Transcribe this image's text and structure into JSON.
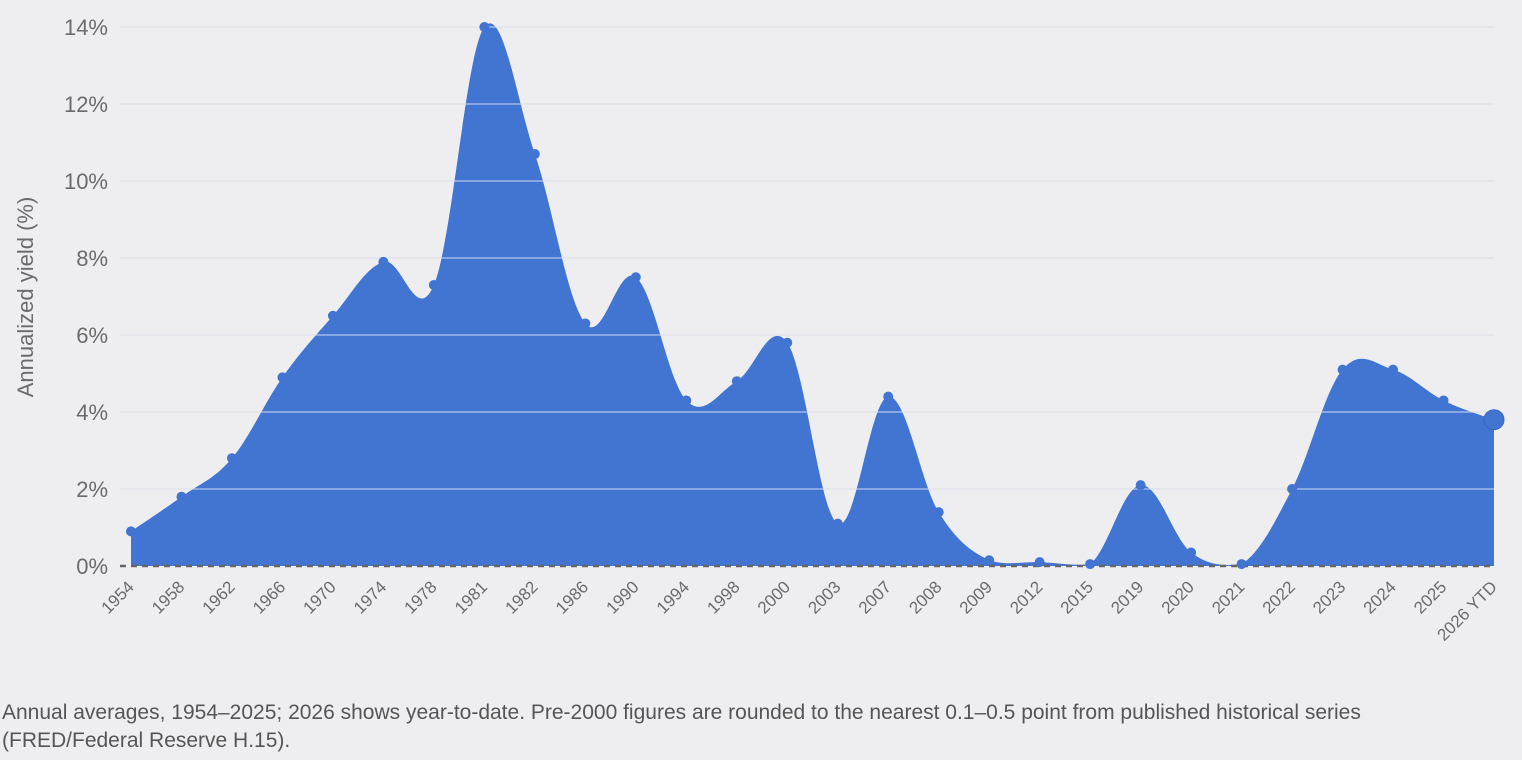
{
  "chart_data": {
    "type": "area",
    "ylabel": "Annualized yield (%)",
    "xlabel": "",
    "ylim": [
      0,
      14
    ],
    "yticks": [
      0,
      2,
      4,
      6,
      8,
      10,
      12,
      14
    ],
    "ytick_suffix": "%",
    "grid": true,
    "area_color": "#4274d2",
    "categories": [
      "1954",
      "1958",
      "1962",
      "1966",
      "1970",
      "1974",
      "1978",
      "1981",
      "1982",
      "1986",
      "1990",
      "1994",
      "1998",
      "2000",
      "2003",
      "2007",
      "2008",
      "2009",
      "2012",
      "2015",
      "2019",
      "2020",
      "2021",
      "2022",
      "2023",
      "2024",
      "2025",
      "2026 YTD"
    ],
    "values": [
      0.9,
      1.8,
      2.8,
      4.9,
      6.5,
      7.9,
      7.3,
      14.0,
      10.7,
      6.3,
      7.5,
      4.3,
      4.8,
      5.8,
      1.1,
      4.4,
      1.4,
      0.15,
      0.1,
      0.05,
      2.1,
      0.35,
      0.05,
      2.0,
      5.1,
      5.1,
      4.3,
      3.8
    ]
  },
  "footnote": "Annual averages, 1954–2025; 2026 shows year-to-date. Pre-2000 figures are rounded to the nearest 0.1–0.5 point from published historical series (FRED/Federal Reserve H.15)."
}
